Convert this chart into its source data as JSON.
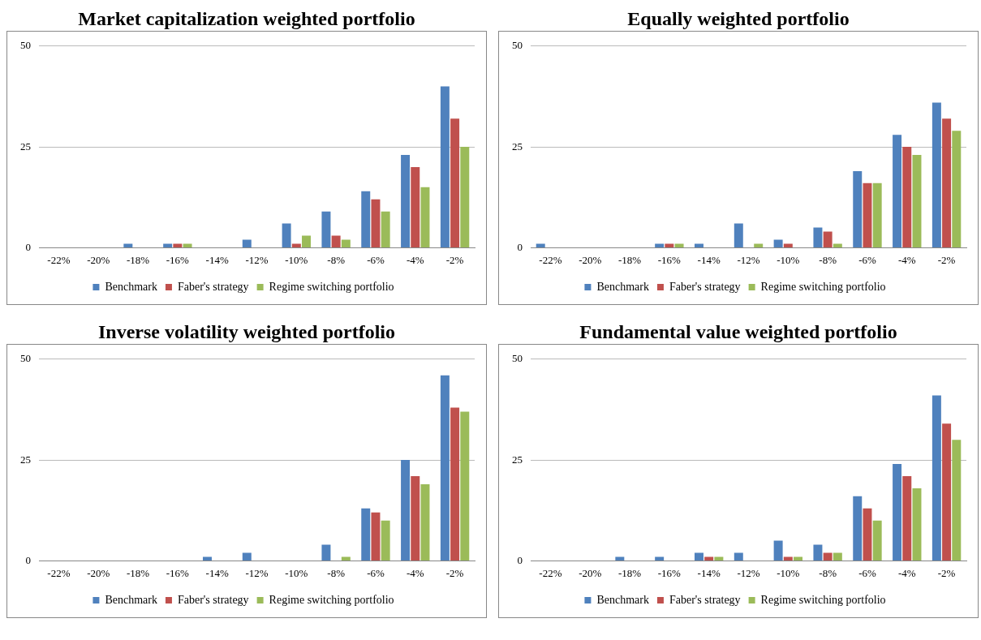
{
  "chart_data": [
    {
      "type": "bar",
      "title": "Market capitalization weighted portfolio",
      "categories": [
        "-22%",
        "-20%",
        "-18%",
        "-16%",
        "-14%",
        "-12%",
        "-10%",
        "-8%",
        "-6%",
        "-4%",
        "-2%"
      ],
      "ylim": [
        0,
        50
      ],
      "yticks": [
        0,
        25,
        50
      ],
      "grid": "y",
      "legend": "bottom",
      "series": [
        {
          "name": "Benchmark",
          "color": "#4f81bd",
          "values": [
            0,
            0,
            1,
            1,
            0,
            2,
            6,
            9,
            14,
            23,
            40
          ]
        },
        {
          "name": "Faber's strategy",
          "color": "#c0504d",
          "values": [
            0,
            0,
            0,
            1,
            0,
            0,
            1,
            3,
            12,
            20,
            32
          ]
        },
        {
          "name": "Regime switching portfolio",
          "color": "#9bbb59",
          "values": [
            0,
            0,
            0,
            1,
            0,
            0,
            3,
            2,
            9,
            15,
            25
          ]
        }
      ]
    },
    {
      "type": "bar",
      "title": "Equally weighted portfolio",
      "categories": [
        "-22%",
        "-20%",
        "-18%",
        "-16%",
        "-14%",
        "-12%",
        "-10%",
        "-8%",
        "-6%",
        "-4%",
        "-2%"
      ],
      "ylim": [
        0,
        50
      ],
      "yticks": [
        0,
        25,
        50
      ],
      "grid": "y",
      "legend": "bottom",
      "series": [
        {
          "name": "Benchmark",
          "color": "#4f81bd",
          "values": [
            1,
            0,
            0,
            1,
            1,
            6,
            2,
            5,
            19,
            28,
            36
          ]
        },
        {
          "name": "Faber's strategy",
          "color": "#c0504d",
          "values": [
            0,
            0,
            0,
            1,
            0,
            0,
            1,
            4,
            16,
            25,
            32
          ]
        },
        {
          "name": "Regime switching portfolio",
          "color": "#9bbb59",
          "values": [
            0,
            0,
            0,
            1,
            0,
            1,
            0,
            1,
            16,
            23,
            29
          ]
        }
      ]
    },
    {
      "type": "bar",
      "title": "Inverse volatility weighted portfolio",
      "categories": [
        "-22%",
        "-20%",
        "-18%",
        "-16%",
        "-14%",
        "-12%",
        "-10%",
        "-8%",
        "-6%",
        "-4%",
        "-2%"
      ],
      "ylim": [
        0,
        50
      ],
      "yticks": [
        0,
        25,
        50
      ],
      "grid": "y",
      "legend": "bottom",
      "series": [
        {
          "name": "Benchmark",
          "color": "#4f81bd",
          "values": [
            0,
            0,
            0,
            0,
            1,
            2,
            0,
            4,
            13,
            25,
            46
          ]
        },
        {
          "name": "Faber's strategy",
          "color": "#c0504d",
          "values": [
            0,
            0,
            0,
            0,
            0,
            0,
            0,
            0,
            12,
            21,
            38
          ]
        },
        {
          "name": "Regime switching portfolio",
          "color": "#9bbb59",
          "values": [
            0,
            0,
            0,
            0,
            0,
            0,
            0,
            1,
            10,
            19,
            37
          ]
        }
      ]
    },
    {
      "type": "bar",
      "title": "Fundamental value weighted portfolio",
      "categories": [
        "-22%",
        "-20%",
        "-18%",
        "-16%",
        "-14%",
        "-12%",
        "-10%",
        "-8%",
        "-6%",
        "-4%",
        "-2%"
      ],
      "ylim": [
        0,
        50
      ],
      "yticks": [
        0,
        25,
        50
      ],
      "grid": "y",
      "legend": "bottom",
      "series": [
        {
          "name": "Benchmark",
          "color": "#4f81bd",
          "values": [
            0,
            0,
            1,
            1,
            2,
            2,
            5,
            4,
            16,
            24,
            41
          ]
        },
        {
          "name": "Faber's strategy",
          "color": "#c0504d",
          "values": [
            0,
            0,
            0,
            0,
            1,
            0,
            1,
            2,
            13,
            21,
            34
          ]
        },
        {
          "name": "Regime switching portfolio",
          "color": "#9bbb59",
          "values": [
            0,
            0,
            0,
            0,
            1,
            0,
            1,
            2,
            10,
            18,
            30
          ]
        }
      ]
    }
  ]
}
